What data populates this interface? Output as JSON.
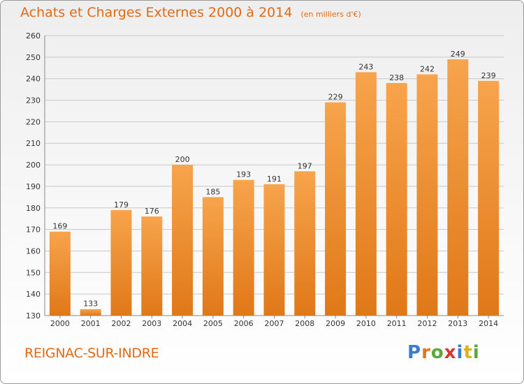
{
  "chart_data": {
    "type": "bar",
    "title": "Achats et Charges Externes 2000 à 2014",
    "subtitle": "(en milliers d'€)",
    "categories": [
      "2000",
      "2001",
      "2002",
      "2003",
      "2004",
      "2005",
      "2006",
      "2007",
      "2008",
      "2009",
      "2010",
      "2011",
      "2012",
      "2013",
      "2014"
    ],
    "values": [
      169,
      133,
      179,
      176,
      200,
      185,
      193,
      191,
      197,
      229,
      243,
      238,
      242,
      249,
      239
    ],
    "ylim": [
      130,
      260
    ],
    "yticks": [
      130,
      140,
      150,
      160,
      170,
      180,
      190,
      200,
      210,
      220,
      230,
      240,
      250,
      260
    ],
    "grid": true,
    "bar_color": "#f0902e",
    "bar_color_light": "#f7a44c",
    "bar_color_dark": "#e07818"
  },
  "footer": {
    "commune": "REIGNAC-SUR-INDRE",
    "logo_text": "Proxiti",
    "logo_colors": [
      "#3a7bd5",
      "#e8731c",
      "#5aa839",
      "#d9352f",
      "#3a7bd5",
      "#e0b21a",
      "#5aa839"
    ]
  }
}
